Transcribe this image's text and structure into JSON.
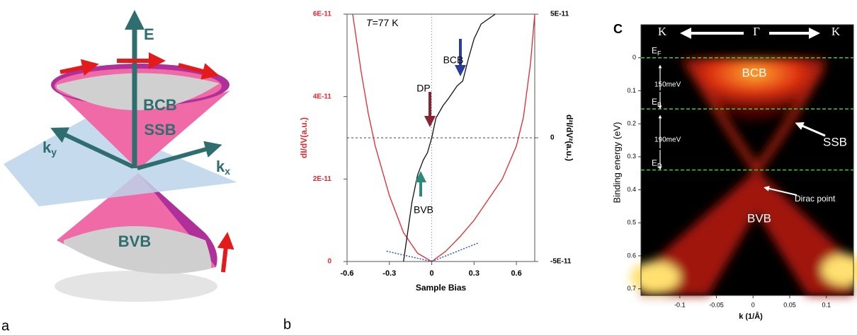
{
  "panel_labels": [
    "a",
    "b",
    "C"
  ],
  "diagram": {
    "energy_axis": "E",
    "upper_band": "BCB",
    "surface_state": "SSB",
    "lower_band": "BVB",
    "ky": {
      "symbol": "k",
      "sub": "y"
    },
    "kx": {
      "symbol": "k",
      "sub": "x"
    }
  },
  "chart_data": [
    {
      "type": "line",
      "annotation_temperature": {
        "symbol": "T",
        "text": "=77 K"
      },
      "annotations": [
        "BCB",
        "DP",
        "BVB"
      ],
      "ylabel": "dI/dV(a.u.)",
      "y2label": "d²I/dV²(a.u.)",
      "xlabel": "Sample Bias",
      "xlim": [
        -0.6,
        0.73
      ],
      "xticks": [
        -0.6,
        -0.3,
        0,
        0.3,
        0.6
      ],
      "ylim": [
        0,
        6e-11
      ],
      "yticks": [
        0,
        {
          "value": 2e-11,
          "label": "2E-11"
        },
        {
          "value": 4e-11,
          "label": "4E-11"
        },
        {
          "value": 6e-11,
          "label": "6E-11"
        }
      ],
      "y2lim": [
        -5e-11,
        5e-11
      ],
      "y2ticks": [
        {
          "value": -5e-11,
          "label": "-5E-11"
        },
        0,
        {
          "value": 5e-11,
          "label": "5E-11"
        }
      ],
      "series": [
        {
          "color": "#e8272e",
          "axis": "y",
          "x": [
            -0.56,
            -0.5,
            -0.45,
            -0.4,
            -0.3,
            -0.2,
            -0.1,
            0,
            0.1,
            0.2,
            0.3,
            0.4,
            0.5,
            0.6,
            0.65,
            0.7,
            0.73
          ],
          "values": [
            6e-11,
            4.6e-11,
            3.6e-11,
            2.8e-11,
            1.6e-11,
            7e-12,
            2e-12,
            0,
            2.5e-12,
            6e-12,
            1e-11,
            1.5e-11,
            2e-11,
            2.8e-11,
            3.5e-11,
            4.8e-11,
            6e-11
          ]
        },
        {
          "color": "#111111",
          "axis": "y2",
          "x": [
            -0.2,
            -0.17,
            -0.14,
            -0.1,
            -0.06,
            -0.03,
            0,
            0.03,
            0.08,
            0.12,
            0.18,
            0.22,
            0.26,
            0.3,
            0.35,
            0.4,
            0.45
          ],
          "values": [
            -5e-11,
            -3.8e-11,
            -2.6e-11,
            -1.5e-11,
            -9e-12,
            -6e-12,
            0,
            8e-12,
            1.3e-11,
            1.6e-11,
            2.1e-11,
            2.3e-11,
            3.2e-11,
            4e-11,
            4.6e-11,
            4.8e-11,
            5e-11
          ]
        },
        {
          "color": "#3050c0",
          "axis": "y",
          "dash": true,
          "x": [
            -0.32,
            0
          ],
          "values": [
            2.5e-12,
            0
          ]
        },
        {
          "color": "#3050c0",
          "axis": "y",
          "dash": true,
          "x": [
            0,
            0.33
          ],
          "values": [
            0,
            4.5e-12
          ]
        }
      ]
    },
    {
      "type": "arpes",
      "xlabel": "k (1/Å)",
      "ylabel": "Binding energy (eV)",
      "xlim": [
        -0.153,
        0.137
      ],
      "xticks": [
        -0.1,
        -0.05,
        0,
        0.05,
        0.1
      ],
      "ylim": [
        -0.1,
        0.72
      ],
      "y_inverted": true,
      "yticks": [
        0,
        0.1,
        0.2,
        0.3,
        0.4,
        0.5,
        0.6,
        0.7
      ],
      "top_labels": [
        "K",
        "Γ",
        "K"
      ],
      "reference_lines": [
        {
          "value": 0,
          "symbol": "E",
          "sub": "F"
        },
        {
          "value": 0.155,
          "symbol": "E",
          "sub": "B"
        },
        {
          "value": 0.34,
          "symbol": "E",
          "sub": "D"
        }
      ],
      "gaps": [
        "150meV",
        "190meV"
      ],
      "band_labels": [
        "BCB",
        "SSB",
        "BVB",
        "Dirac point"
      ]
    }
  ]
}
